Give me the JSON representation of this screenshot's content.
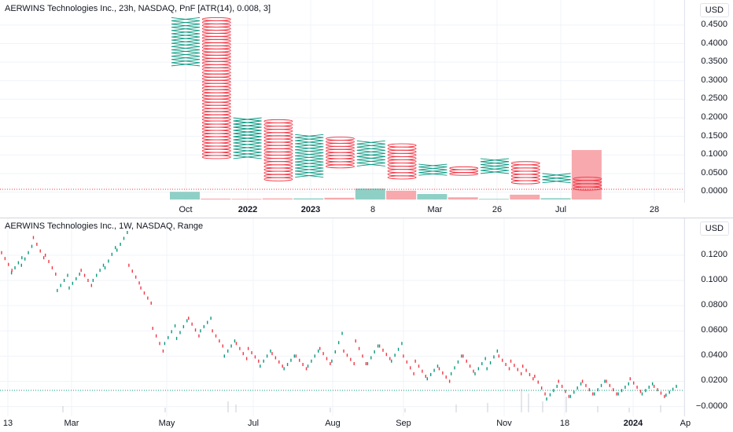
{
  "top_pane": {
    "title": "AERWINS Technologies Inc., 23h, NASDAQ, PnF [ATR(14), 0.008, 3]",
    "currency": "USD",
    "y_labels": [
      "0.4500",
      "0.4000",
      "0.3500",
      "0.3000",
      "0.2500",
      "0.2000",
      "0.1500",
      "0.1000",
      "0.0500",
      "0.0000"
    ],
    "time_labels": [
      {
        "text": "Oct",
        "bold": false
      },
      {
        "text": "2022",
        "bold": true
      },
      {
        "text": "2023",
        "bold": true
      },
      {
        "text": "8",
        "bold": false
      },
      {
        "text": "Mar",
        "bold": false
      },
      {
        "text": "26",
        "bold": false
      },
      {
        "text": "Jul",
        "bold": false
      },
      {
        "text": "28",
        "bold": false
      }
    ]
  },
  "bottom_pane": {
    "title": "AERWINS Technologies Inc., 1W, NASDAQ, Range",
    "currency": "USD",
    "y_labels": [
      "0.1200",
      "0.1000",
      "0.0800",
      "0.0600",
      "0.0400",
      "0.0200",
      "−0.0000"
    ],
    "time_labels": [
      {
        "text": "13",
        "bold": false
      },
      {
        "text": "Mar",
        "bold": false
      },
      {
        "text": "May",
        "bold": false
      },
      {
        "text": "Jul",
        "bold": false
      },
      {
        "text": "Aug",
        "bold": false
      },
      {
        "text": "Sep",
        "bold": false
      },
      {
        "text": "Nov",
        "bold": false
      },
      {
        "text": "18",
        "bold": false
      },
      {
        "text": "2024",
        "bold": true
      },
      {
        "text": "Ap",
        "bold": false
      }
    ]
  },
  "colors": {
    "up": "#089981",
    "down": "#f23645",
    "vol_up": "#8fd0c6",
    "vol_down": "#f7a9ae",
    "grid": "#f0f3fa",
    "last_price": "#f23645",
    "last_price_bottom": "#089981"
  },
  "chart_data": [
    {
      "type": "point-and-figure",
      "title": "AERWINS Technologies Inc., 23h, NASDAQ, PnF [ATR(14), 0.008, 3]",
      "ylim": [
        -0.018,
        0.49
      ],
      "columns": [
        {
          "kind": "X",
          "low": 0.34,
          "high": 0.47
        },
        {
          "kind": "O",
          "low": 0.09,
          "high": 0.47
        },
        {
          "kind": "X",
          "low": 0.09,
          "high": 0.2
        },
        {
          "kind": "O",
          "low": 0.03,
          "high": 0.195
        },
        {
          "kind": "X",
          "low": 0.04,
          "high": 0.155
        },
        {
          "kind": "O",
          "low": 0.065,
          "high": 0.148
        },
        {
          "kind": "X",
          "low": 0.07,
          "high": 0.138
        },
        {
          "kind": "O",
          "low": 0.035,
          "high": 0.13
        },
        {
          "kind": "X",
          "low": 0.045,
          "high": 0.075
        },
        {
          "kind": "O",
          "low": 0.045,
          "high": 0.068
        },
        {
          "kind": "X",
          "low": 0.05,
          "high": 0.09
        },
        {
          "kind": "O",
          "low": 0.022,
          "high": 0.082
        },
        {
          "kind": "X",
          "low": 0.025,
          "high": 0.05
        },
        {
          "kind": "O",
          "low": 0.005,
          "high": 0.04
        }
      ],
      "volume": [
        {
          "dir": "up",
          "value": 0.35
        },
        {
          "dir": "down",
          "value": 0.04
        },
        {
          "dir": "down",
          "value": 0.03
        },
        {
          "dir": "down",
          "value": 0.05
        },
        {
          "dir": "up",
          "value": 0.05
        },
        {
          "dir": "down",
          "value": 0.08
        },
        {
          "dir": "up",
          "value": 0.5
        },
        {
          "dir": "down",
          "value": 0.4
        },
        {
          "dir": "up",
          "value": 0.25
        },
        {
          "dir": "down",
          "value": 0.1
        },
        {
          "dir": "up",
          "value": 0.03
        },
        {
          "dir": "down",
          "value": 0.22
        },
        {
          "dir": "up",
          "value": 0.06
        },
        {
          "dir": "down",
          "value": 2.5
        }
      ],
      "last_price": 0.0075
    },
    {
      "type": "range",
      "title": "AERWINS Technologies Inc., 1W, NASDAQ, Range",
      "ylim": [
        -0.004,
        0.138
      ],
      "bars": [
        {
          "t": 0.0,
          "dir": "down",
          "lo": 0.108,
          "hi": 0.122
        },
        {
          "t": 0.5,
          "dir": "up",
          "lo": 0.106,
          "hi": 0.118
        },
        {
          "t": 1.0,
          "dir": "up",
          "lo": 0.112,
          "hi": 0.127
        },
        {
          "t": 1.6,
          "dir": "down",
          "lo": 0.118,
          "hi": 0.134
        },
        {
          "t": 2.2,
          "dir": "down",
          "lo": 0.105,
          "hi": 0.12
        },
        {
          "t": 2.8,
          "dir": "up",
          "lo": 0.092,
          "hi": 0.104
        },
        {
          "t": 3.4,
          "dir": "up",
          "lo": 0.094,
          "hi": 0.105
        },
        {
          "t": 4.0,
          "dir": "down",
          "lo": 0.096,
          "hi": 0.108
        },
        {
          "t": 4.6,
          "dir": "up",
          "lo": 0.1,
          "hi": 0.112
        },
        {
          "t": 5.2,
          "dir": "up",
          "lo": 0.11,
          "hi": 0.126
        },
        {
          "t": 5.8,
          "dir": "up",
          "lo": 0.124,
          "hi": 0.138
        },
        {
          "t": 6.4,
          "dir": "down",
          "lo": 0.098,
          "hi": 0.112
        },
        {
          "t": 7.0,
          "dir": "down",
          "lo": 0.082,
          "hi": 0.094
        },
        {
          "t": 7.6,
          "dir": "down",
          "lo": 0.044,
          "hi": 0.062
        },
        {
          "t": 8.2,
          "dir": "up",
          "lo": 0.05,
          "hi": 0.064
        },
        {
          "t": 8.8,
          "dir": "up",
          "lo": 0.054,
          "hi": 0.068
        },
        {
          "t": 9.4,
          "dir": "down",
          "lo": 0.056,
          "hi": 0.07
        },
        {
          "t": 10.0,
          "dir": "up",
          "lo": 0.06,
          "hi": 0.07
        },
        {
          "t": 10.6,
          "dir": "down",
          "lo": 0.048,
          "hi": 0.06
        },
        {
          "t": 11.2,
          "dir": "up",
          "lo": 0.04,
          "hi": 0.052
        },
        {
          "t": 11.8,
          "dir": "down",
          "lo": 0.038,
          "hi": 0.05
        },
        {
          "t": 12.4,
          "dir": "down",
          "lo": 0.036,
          "hi": 0.046
        },
        {
          "t": 13.0,
          "dir": "up",
          "lo": 0.032,
          "hi": 0.044
        },
        {
          "t": 13.6,
          "dir": "down",
          "lo": 0.032,
          "hi": 0.042
        },
        {
          "t": 14.2,
          "dir": "up",
          "lo": 0.03,
          "hi": 0.04
        },
        {
          "t": 14.8,
          "dir": "down",
          "lo": 0.03,
          "hi": 0.04
        },
        {
          "t": 15.4,
          "dir": "up",
          "lo": 0.032,
          "hi": 0.044
        },
        {
          "t": 16.0,
          "dir": "down",
          "lo": 0.034,
          "hi": 0.046
        },
        {
          "t": 16.6,
          "dir": "up",
          "lo": 0.036,
          "hi": 0.058
        },
        {
          "t": 17.2,
          "dir": "down",
          "lo": 0.034,
          "hi": 0.044
        },
        {
          "t": 17.8,
          "dir": "down",
          "lo": 0.034,
          "hi": 0.052
        },
        {
          "t": 18.4,
          "dir": "up",
          "lo": 0.034,
          "hi": 0.048
        },
        {
          "t": 19.0,
          "dir": "down",
          "lo": 0.038,
          "hi": 0.048
        },
        {
          "t": 19.6,
          "dir": "up",
          "lo": 0.036,
          "hi": 0.05
        },
        {
          "t": 20.2,
          "dir": "down",
          "lo": 0.026,
          "hi": 0.04
        },
        {
          "t": 20.8,
          "dir": "down",
          "lo": 0.024,
          "hi": 0.036
        },
        {
          "t": 21.4,
          "dir": "up",
          "lo": 0.022,
          "hi": 0.032
        },
        {
          "t": 22.0,
          "dir": "down",
          "lo": 0.02,
          "hi": 0.03
        },
        {
          "t": 22.6,
          "dir": "up",
          "lo": 0.026,
          "hi": 0.04
        },
        {
          "t": 23.2,
          "dir": "down",
          "lo": 0.028,
          "hi": 0.04
        },
        {
          "t": 23.8,
          "dir": "up",
          "lo": 0.026,
          "hi": 0.038
        },
        {
          "t": 24.4,
          "dir": "up",
          "lo": 0.03,
          "hi": 0.044
        },
        {
          "t": 25.0,
          "dir": "down",
          "lo": 0.03,
          "hi": 0.04
        },
        {
          "t": 25.6,
          "dir": "down",
          "lo": 0.026,
          "hi": 0.036
        },
        {
          "t": 26.2,
          "dir": "down",
          "lo": 0.022,
          "hi": 0.032
        },
        {
          "t": 26.8,
          "dir": "down",
          "lo": 0.01,
          "hi": 0.024
        },
        {
          "t": 27.4,
          "dir": "up",
          "lo": 0.006,
          "hi": 0.016
        },
        {
          "t": 28.0,
          "dir": "down",
          "lo": 0.008,
          "hi": 0.02
        },
        {
          "t": 28.6,
          "dir": "up",
          "lo": 0.008,
          "hi": 0.018
        },
        {
          "t": 29.2,
          "dir": "down",
          "lo": 0.01,
          "hi": 0.02
        },
        {
          "t": 29.8,
          "dir": "up",
          "lo": 0.01,
          "hi": 0.02
        },
        {
          "t": 30.4,
          "dir": "down",
          "lo": 0.01,
          "hi": 0.02
        },
        {
          "t": 31.0,
          "dir": "up",
          "lo": 0.01,
          "hi": 0.018
        },
        {
          "t": 31.6,
          "dir": "down",
          "lo": 0.012,
          "hi": 0.022
        },
        {
          "t": 32.2,
          "dir": "up",
          "lo": 0.01,
          "hi": 0.018
        },
        {
          "t": 32.8,
          "dir": "down",
          "lo": 0.008,
          "hi": 0.016
        },
        {
          "t": 33.4,
          "dir": "up",
          "lo": 0.009,
          "hi": 0.016
        }
      ],
      "t_max": 34.0,
      "last_price": 0.0128
    }
  ]
}
